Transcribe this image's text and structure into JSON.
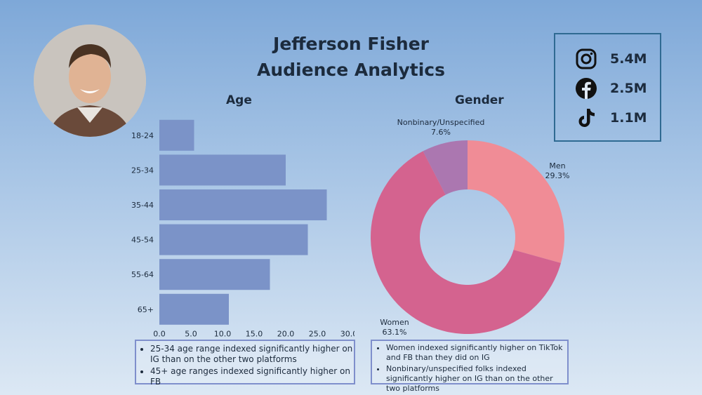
{
  "title_line1": "Jefferson Fisher",
  "title_line2": "Audience Analytics",
  "stats": [
    {
      "icon": "instagram-icon",
      "value": "5.4M"
    },
    {
      "icon": "facebook-icon",
      "value": "2.5M"
    },
    {
      "icon": "tiktok-icon",
      "value": "1.1M"
    }
  ],
  "chart_data": [
    {
      "type": "bar",
      "orientation": "horizontal",
      "title": "Age",
      "categories": [
        "18-24",
        "25-34",
        "35-44",
        "45-54",
        "55-64",
        "65+"
      ],
      "values": [
        5.5,
        20.0,
        26.5,
        23.5,
        17.5,
        11.0
      ],
      "xlim": [
        0,
        30
      ],
      "xticks": [
        "0.0",
        "5.0",
        "10.0",
        "15.0",
        "20.0",
        "25.0",
        "30.0"
      ],
      "color": "#7b93c8"
    },
    {
      "type": "pie",
      "variant": "donut",
      "title": "Gender",
      "slices": [
        {
          "label": "Men",
          "value": 29.3,
          "display": "29.3%",
          "color": "#f08c96"
        },
        {
          "label": "Women",
          "value": 63.1,
          "display": "63.1%",
          "color": "#d4638f"
        },
        {
          "label": "Nonbinary/Unspecified",
          "value": 7.6,
          "display": "7.6%",
          "color": "#ab77b0"
        }
      ]
    }
  ],
  "age_notes": [
    "25-34 age range indexed significantly higher on IG than on the other two platforms",
    "45+ age ranges indexed significantly higher on FB"
  ],
  "gender_notes": [
    "Women indexed significantly higher on TikTok and FB than they did on IG",
    "Nonbinary/unspecified folks indexed significantly higher on IG than on the other two platforms"
  ]
}
